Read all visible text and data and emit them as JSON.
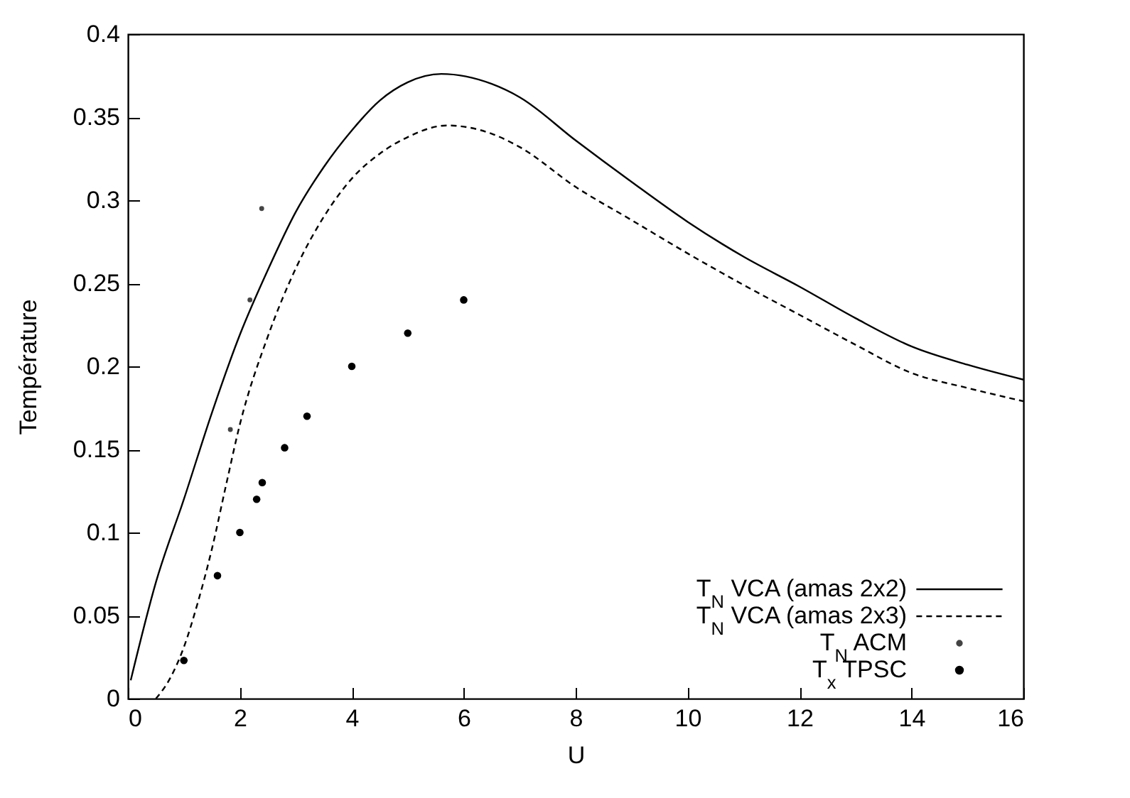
{
  "chart_data": {
    "type": "line",
    "xlabel": "U",
    "ylabel": "Température",
    "xlim": [
      0,
      16
    ],
    "xticks": [
      0,
      2,
      4,
      6,
      8,
      10,
      12,
      14,
      16
    ],
    "ylim": [
      0,
      0.4
    ],
    "yticks": [
      0,
      0.05,
      0.1,
      0.15,
      0.2,
      0.25,
      0.3,
      0.35,
      0.4
    ],
    "grid": false,
    "legend": "bottom right",
    "series": [
      {
        "name": "T$_{N}$ VCA (amas 2x2)",
        "color": "#000000",
        "line_style": "solid",
        "marker": "none",
        "x": [
          0.05,
          0.5,
          1,
          1.5,
          2,
          2.5,
          3,
          3.5,
          4,
          4.5,
          5,
          5.6,
          6.5,
          7,
          8,
          9,
          10,
          11,
          12,
          13,
          14,
          15,
          16
        ],
        "values": [
          0.011,
          0.07,
          0.12,
          0.172,
          0.219,
          0.258,
          0.293,
          0.32,
          0.342,
          0.36,
          0.371,
          0.376,
          0.37,
          0.362,
          0.336,
          0.311,
          0.287,
          0.266,
          0.248,
          0.229,
          0.212,
          0.201,
          0.192
        ]
      },
      {
        "name": "T$_{N}$ VCA (amas 2x3)",
        "color": "#000000",
        "line_style": "dashed",
        "marker": "none",
        "x": [
          0.5,
          0.75,
          1,
          1.25,
          1.5,
          1.75,
          2,
          2.5,
          3,
          3.5,
          4,
          4.5,
          5,
          5.7,
          6.5,
          7,
          8,
          9,
          10,
          11,
          12,
          13,
          14,
          15,
          16
        ],
        "values": [
          0,
          0.012,
          0.031,
          0.058,
          0.09,
          0.128,
          0.165,
          0.218,
          0.259,
          0.29,
          0.313,
          0.328,
          0.338,
          0.345,
          0.34,
          0.332,
          0.308,
          0.288,
          0.268,
          0.249,
          0.231,
          0.213,
          0.196,
          0.187,
          0.179
        ]
      },
      {
        "name": "T$_{N}$ ACM",
        "type": "scatter",
        "color": "#444444",
        "marker": "circle",
        "x": [
          1.83,
          2.18,
          2.39
        ],
        "values": [
          0.162,
          0.24,
          0.295
        ]
      },
      {
        "name": "T$_{x}$ TPSC",
        "type": "scatter",
        "color": "#000000",
        "marker": "circle",
        "x": [
          1.0,
          1.6,
          2.0,
          2.3,
          2.4,
          2.8,
          3.2,
          4,
          5,
          6
        ],
        "values": [
          0.023,
          0.074,
          0.1,
          0.12,
          0.13,
          0.151,
          0.17,
          0.2,
          0.22,
          0.24
        ]
      }
    ]
  }
}
